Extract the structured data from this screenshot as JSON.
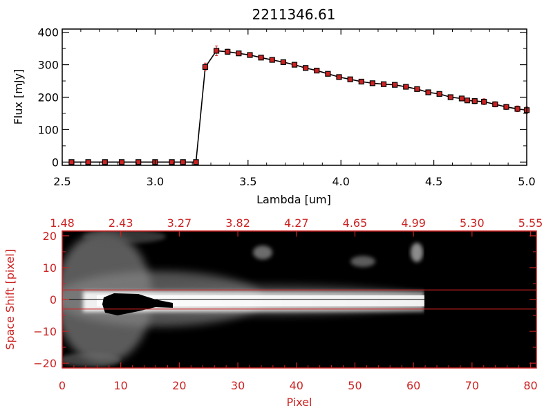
{
  "chart_data": [
    {
      "type": "line",
      "title": "2211346.61",
      "xlabel": "Lambda [um]",
      "ylabel": "Flux [mJy]",
      "xlim": [
        2.5,
        5.0
      ],
      "ylim": [
        -10,
        410
      ],
      "x_ticks": [
        2.5,
        3.0,
        3.5,
        4.0,
        4.5,
        5.0
      ],
      "x_tick_labels": [
        "2.5",
        "3.0",
        "3.5",
        "4.0",
        "4.5",
        "5.0"
      ],
      "y_ticks": [
        0,
        100,
        200,
        300,
        400
      ],
      "y_tick_labels": [
        "0",
        "100",
        "200",
        "300",
        "400"
      ],
      "colors": {
        "line": "#000000",
        "marker": "#cc2222",
        "error": "#cc2222",
        "axes": "#000000"
      },
      "series": [
        {
          "marker": "square",
          "x": [
            2.55,
            2.64,
            2.73,
            2.82,
            2.91,
            3.0,
            3.09,
            3.15,
            3.22,
            3.27,
            3.33,
            3.39,
            3.45,
            3.51,
            3.57,
            3.63,
            3.69,
            3.75,
            3.81,
            3.87,
            3.93,
            3.99,
            4.05,
            4.11,
            4.17,
            4.23,
            4.29,
            4.35,
            4.41,
            4.47,
            4.53,
            4.59,
            4.65,
            4.68,
            4.72,
            4.77,
            4.83,
            4.89,
            4.95,
            5.0
          ],
          "y": [
            0,
            0,
            0,
            0,
            0,
            0,
            0,
            0,
            0,
            293,
            343,
            340,
            335,
            330,
            322,
            315,
            308,
            300,
            290,
            282,
            272,
            262,
            255,
            248,
            243,
            240,
            238,
            232,
            225,
            215,
            210,
            200,
            196,
            190,
            188,
            186,
            178,
            170,
            164,
            160
          ],
          "yerr": [
            2,
            2,
            2,
            2,
            2,
            2,
            2,
            2,
            2,
            12,
            15,
            8,
            7,
            6,
            6,
            6,
            6,
            6,
            6,
            6,
            6,
            6,
            6,
            6,
            6,
            6,
            6,
            6,
            6,
            6,
            6,
            6,
            7,
            7,
            8,
            9,
            8,
            8,
            9,
            10
          ]
        }
      ]
    },
    {
      "type": "heatmap",
      "xlabel": "Pixel",
      "ylabel": "Space Shift [pixel]",
      "xlim": [
        0,
        81
      ],
      "ylim": [
        -21.5,
        21.5
      ],
      "x_ticks": [
        0,
        10,
        20,
        30,
        40,
        50,
        60,
        70,
        80
      ],
      "x_tick_labels": [
        "0",
        "10",
        "20",
        "30",
        "40",
        "50",
        "60",
        "70",
        "80"
      ],
      "y_ticks": [
        -20,
        -10,
        0,
        10,
        20
      ],
      "y_tick_labels": [
        "−20",
        "−10",
        "0",
        "10",
        "20"
      ],
      "top_axis_tick_labels": [
        "1.48",
        "2.43",
        "3.27",
        "3.82",
        "4.27",
        "4.65",
        "4.99",
        "5.30",
        "5.55"
      ],
      "horizontal_lines": [
        3,
        -3
      ],
      "spectrum_extent": {
        "x_start": 0,
        "x_end": 62
      },
      "colors": {
        "axes": "#cc2222",
        "lines": "#cc2222",
        "background": "#000000",
        "signal": "#ffffff"
      }
    }
  ]
}
